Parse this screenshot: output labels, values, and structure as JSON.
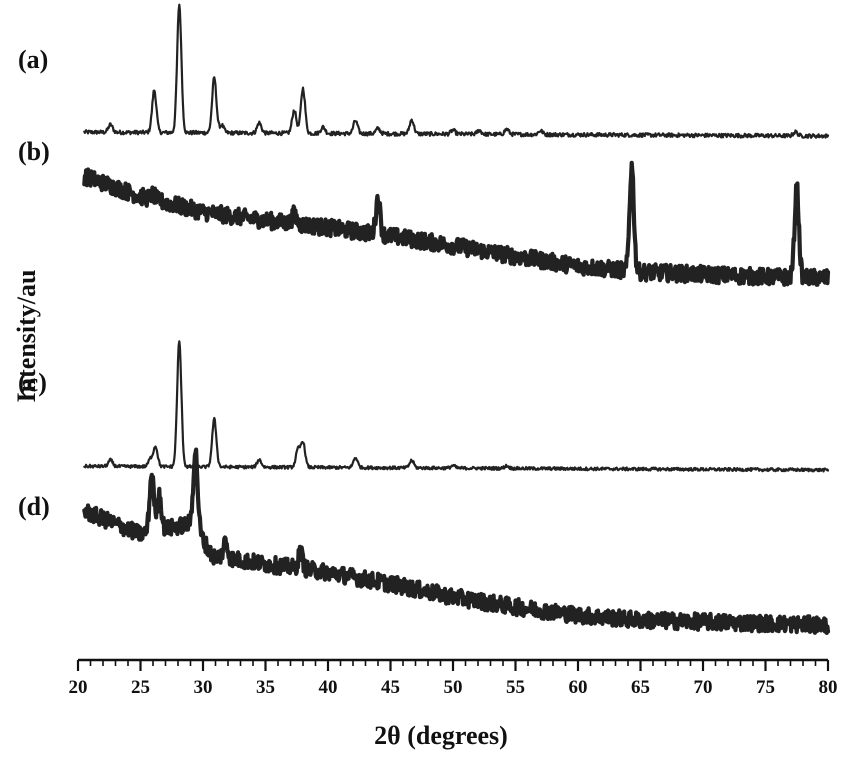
{
  "chart_data": {
    "type": "line",
    "xlabel": "2θ (degrees)",
    "ylabel": "Intensity/au",
    "xlim": [
      20,
      80
    ],
    "xticks": [
      "20",
      "25",
      "30",
      "35",
      "40",
      "45",
      "50",
      "55",
      "60",
      "65",
      "70",
      "75",
      "80"
    ],
    "grid": false,
    "legend": "none",
    "line_color": "#222222",
    "series": [
      {
        "name": "(a)",
        "baseline": [
          [
            20.5,
            0.03
          ],
          [
            80,
            0.0
          ]
        ],
        "noise": 0.015,
        "peaks": [
          {
            "x": 22.6,
            "y": 0.06
          },
          {
            "x": 26.1,
            "y": 0.33
          },
          {
            "x": 28.1,
            "y": 1.0
          },
          {
            "x": 30.9,
            "y": 0.43
          },
          {
            "x": 31.5,
            "y": 0.06
          },
          {
            "x": 34.5,
            "y": 0.08
          },
          {
            "x": 37.3,
            "y": 0.18
          },
          {
            "x": 38.0,
            "y": 0.35
          },
          {
            "x": 39.6,
            "y": 0.05
          },
          {
            "x": 42.2,
            "y": 0.1
          },
          {
            "x": 44.0,
            "y": 0.04
          },
          {
            "x": 46.7,
            "y": 0.11
          },
          {
            "x": 50.0,
            "y": 0.03
          },
          {
            "x": 52.1,
            "y": 0.03
          },
          {
            "x": 54.3,
            "y": 0.04
          },
          {
            "x": 57.0,
            "y": 0.03
          },
          {
            "x": 77.4,
            "y": 0.03
          }
        ]
      },
      {
        "name": "(b)",
        "baseline": [
          [
            20.5,
            1.0
          ],
          [
            25,
            0.83
          ],
          [
            30,
            0.7
          ],
          [
            35,
            0.63
          ],
          [
            40,
            0.57
          ],
          [
            45,
            0.5
          ],
          [
            50,
            0.42
          ],
          [
            55,
            0.33
          ],
          [
            60,
            0.25
          ],
          [
            65,
            0.2
          ],
          [
            70,
            0.18
          ],
          [
            75,
            0.16
          ],
          [
            80,
            0.15
          ]
        ],
        "noise": 0.07,
        "peaks": [
          {
            "x": 26.0,
            "y": 0.04
          },
          {
            "x": 37.3,
            "y": 0.08
          },
          {
            "x": 44.0,
            "y": 0.3
          },
          {
            "x": 64.3,
            "y": 0.88
          },
          {
            "x": 77.5,
            "y": 0.75
          }
        ]
      },
      {
        "name": "(c)",
        "baseline": [
          [
            20.5,
            0.03
          ],
          [
            80,
            0.0
          ]
        ],
        "noise": 0.012,
        "peaks": [
          {
            "x": 22.6,
            "y": 0.05
          },
          {
            "x": 25.8,
            "y": 0.06
          },
          {
            "x": 26.2,
            "y": 0.16
          },
          {
            "x": 28.1,
            "y": 1.0
          },
          {
            "x": 30.9,
            "y": 0.38
          },
          {
            "x": 34.5,
            "y": 0.06
          },
          {
            "x": 37.6,
            "y": 0.14
          },
          {
            "x": 38.0,
            "y": 0.2
          },
          {
            "x": 42.2,
            "y": 0.08
          },
          {
            "x": 46.7,
            "y": 0.06
          },
          {
            "x": 50.0,
            "y": 0.02
          },
          {
            "x": 54.3,
            "y": 0.02
          }
        ]
      },
      {
        "name": "(d)",
        "baseline": [
          [
            20.5,
            0.72
          ],
          [
            25,
            0.58
          ],
          [
            29.3,
            0.65
          ],
          [
            30.7,
            0.45
          ],
          [
            35,
            0.4
          ],
          [
            40,
            0.35
          ],
          [
            45,
            0.28
          ],
          [
            50,
            0.2
          ],
          [
            55,
            0.14
          ],
          [
            60,
            0.09
          ],
          [
            65,
            0.06
          ],
          [
            70,
            0.05
          ],
          [
            75,
            0.04
          ],
          [
            80,
            0.03
          ]
        ],
        "noise": 0.05,
        "peaks": [
          {
            "x": 25.9,
            "y": 0.35
          },
          {
            "x": 26.5,
            "y": 0.22
          },
          {
            "x": 29.4,
            "y": 0.45
          },
          {
            "x": 31.8,
            "y": 0.1
          },
          {
            "x": 37.8,
            "y": 0.1
          }
        ]
      }
    ]
  }
}
